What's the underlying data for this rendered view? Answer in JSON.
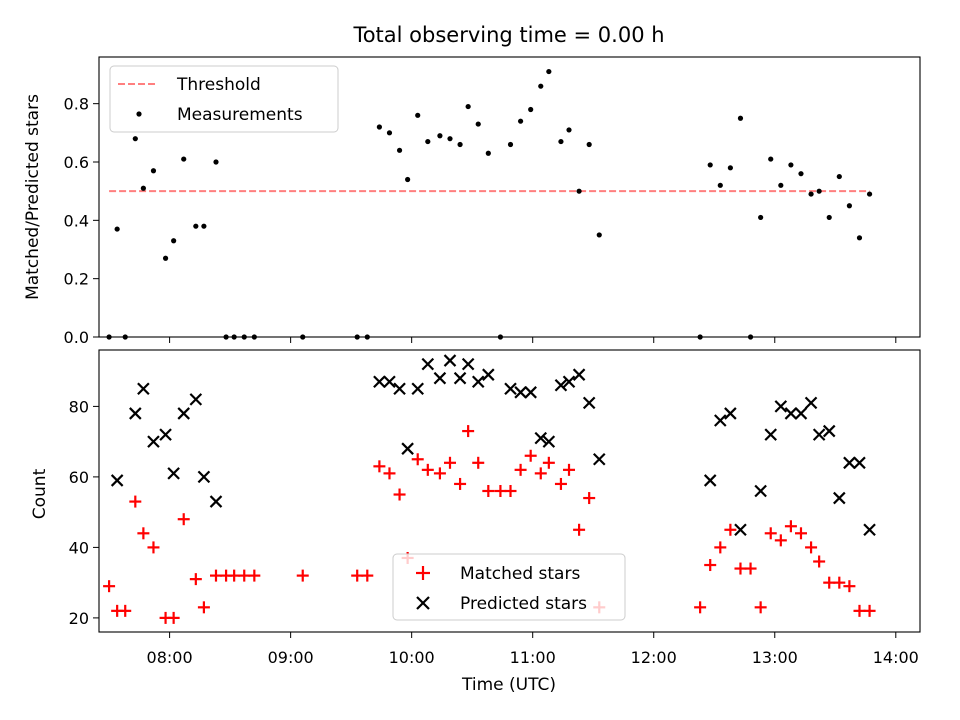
{
  "chart_data": [
    {
      "type": "scatter",
      "title": "Total observing time = 0.00 h",
      "xlabel": "",
      "ylabel": "Matched/Predicted stars",
      "xlim": [
        "07:25",
        "14:12"
      ],
      "ylim": [
        0,
        0.96
      ],
      "yticks": [
        0.0,
        0.2,
        0.4,
        0.6,
        0.8
      ],
      "ytick_labels": [
        "0.0",
        "0.2",
        "0.4",
        "0.6",
        "0.8"
      ],
      "legend_position": "upper-left",
      "legend": [
        "Threshold",
        "Measurements"
      ],
      "threshold": {
        "name": "Threshold",
        "y": 0.5,
        "x_start": "07:30",
        "x_end": "13:47",
        "color": "#ff7f7f",
        "style": "dashed"
      },
      "measurements": {
        "name": "Measurements",
        "color": "#000000",
        "points": [
          [
            "07:30",
            0.0
          ],
          [
            "07:34",
            0.37
          ],
          [
            "07:38",
            0.0
          ],
          [
            "07:43",
            0.68
          ],
          [
            "07:47",
            0.51
          ],
          [
            "07:52",
            0.57
          ],
          [
            "07:58",
            0.27
          ],
          [
            "08:02",
            0.33
          ],
          [
            "08:07",
            0.61
          ],
          [
            "08:13",
            0.38
          ],
          [
            "08:17",
            0.38
          ],
          [
            "08:23",
            0.6
          ],
          [
            "08:28",
            0.0
          ],
          [
            "08:32",
            0.0
          ],
          [
            "08:37",
            0.0
          ],
          [
            "08:42",
            0.0
          ],
          [
            "09:06",
            0.0
          ],
          [
            "09:33",
            0.0
          ],
          [
            "09:38",
            0.0
          ],
          [
            "09:44",
            0.72
          ],
          [
            "09:49",
            0.7
          ],
          [
            "09:54",
            0.64
          ],
          [
            "09:58",
            0.54
          ],
          [
            "10:03",
            0.76
          ],
          [
            "10:08",
            0.67
          ],
          [
            "10:14",
            0.69
          ],
          [
            "10:19",
            0.68
          ],
          [
            "10:24",
            0.66
          ],
          [
            "10:28",
            0.79
          ],
          [
            "10:33",
            0.73
          ],
          [
            "10:38",
            0.63
          ],
          [
            "10:44",
            0.0
          ],
          [
            "10:49",
            0.66
          ],
          [
            "10:54",
            0.74
          ],
          [
            "10:59",
            0.78
          ],
          [
            "11:04",
            0.86
          ],
          [
            "11:08",
            0.91
          ],
          [
            "11:14",
            0.67
          ],
          [
            "11:18",
            0.71
          ],
          [
            "11:23",
            0.5
          ],
          [
            "11:28",
            0.66
          ],
          [
            "11:33",
            0.35
          ],
          [
            "12:23",
            0.0
          ],
          [
            "12:28",
            0.59
          ],
          [
            "12:33",
            0.52
          ],
          [
            "12:38",
            0.58
          ],
          [
            "12:43",
            0.75
          ],
          [
            "12:48",
            0.0
          ],
          [
            "12:53",
            0.41
          ],
          [
            "12:58",
            0.61
          ],
          [
            "13:03",
            0.52
          ],
          [
            "13:08",
            0.59
          ],
          [
            "13:13",
            0.56
          ],
          [
            "13:18",
            0.49
          ],
          [
            "13:22",
            0.5
          ],
          [
            "13:27",
            0.41
          ],
          [
            "13:32",
            0.55
          ],
          [
            "13:37",
            0.45
          ],
          [
            "13:42",
            0.34
          ],
          [
            "13:47",
            0.49
          ]
        ]
      }
    },
    {
      "type": "scatter",
      "title": "",
      "xlabel": "Time (UTC)",
      "ylabel": "Count",
      "xlim": [
        "07:25",
        "14:12"
      ],
      "xticks": [
        "08:00",
        "09:00",
        "10:00",
        "11:00",
        "12:00",
        "13:00",
        "14:00"
      ],
      "xtick_labels": [
        "08:00",
        "09:00",
        "10:00",
        "11:00",
        "12:00",
        "13:00",
        "14:00"
      ],
      "ylim": [
        16,
        96
      ],
      "yticks": [
        20,
        40,
        60,
        80
      ],
      "ytick_labels": [
        "20",
        "40",
        "60",
        "80"
      ],
      "legend_position": "lower-center",
      "legend": [
        "Matched stars",
        "Predicted stars"
      ],
      "series": [
        {
          "name": "Matched stars",
          "marker": "plus",
          "color": "#ff0000",
          "points": [
            [
              "07:30",
              29
            ],
            [
              "07:34",
              22
            ],
            [
              "07:38",
              22
            ],
            [
              "07:43",
              53
            ],
            [
              "07:47",
              44
            ],
            [
              "07:52",
              40
            ],
            [
              "07:58",
              20
            ],
            [
              "08:02",
              20
            ],
            [
              "08:07",
              48
            ],
            [
              "08:13",
              31
            ],
            [
              "08:17",
              23
            ],
            [
              "08:23",
              32
            ],
            [
              "08:28",
              32
            ],
            [
              "08:32",
              32
            ],
            [
              "08:37",
              32
            ],
            [
              "08:42",
              32
            ],
            [
              "09:06",
              32
            ],
            [
              "09:33",
              32
            ],
            [
              "09:38",
              32
            ],
            [
              "09:44",
              63
            ],
            [
              "09:49",
              61
            ],
            [
              "09:54",
              55
            ],
            [
              "09:58",
              37
            ],
            [
              "10:03",
              65
            ],
            [
              "10:08",
              62
            ],
            [
              "10:14",
              61
            ],
            [
              "10:19",
              64
            ],
            [
              "10:24",
              58
            ],
            [
              "10:28",
              73
            ],
            [
              "10:33",
              64
            ],
            [
              "10:38",
              56
            ],
            [
              "10:44",
              56
            ],
            [
              "10:49",
              56
            ],
            [
              "10:54",
              62
            ],
            [
              "10:59",
              66
            ],
            [
              "11:04",
              61
            ],
            [
              "11:08",
              64
            ],
            [
              "11:14",
              58
            ],
            [
              "11:18",
              62
            ],
            [
              "11:23",
              45
            ],
            [
              "11:28",
              54
            ],
            [
              "11:33",
              23
            ],
            [
              "12:23",
              23
            ],
            [
              "12:28",
              35
            ],
            [
              "12:33",
              40
            ],
            [
              "12:38",
              45
            ],
            [
              "12:43",
              34
            ],
            [
              "12:48",
              34
            ],
            [
              "12:53",
              23
            ],
            [
              "12:58",
              44
            ],
            [
              "13:03",
              42
            ],
            [
              "13:08",
              46
            ],
            [
              "13:13",
              44
            ],
            [
              "13:18",
              40
            ],
            [
              "13:22",
              36
            ],
            [
              "13:27",
              30
            ],
            [
              "13:32",
              30
            ],
            [
              "13:37",
              29
            ],
            [
              "13:42",
              22
            ],
            [
              "13:47",
              22
            ]
          ]
        },
        {
          "name": "Predicted stars",
          "marker": "x",
          "color": "#000000",
          "points": [
            [
              "07:34",
              59
            ],
            [
              "07:43",
              78
            ],
            [
              "07:47",
              85
            ],
            [
              "07:52",
              70
            ],
            [
              "07:58",
              72
            ],
            [
              "08:02",
              61
            ],
            [
              "08:07",
              78
            ],
            [
              "08:13",
              82
            ],
            [
              "08:17",
              60
            ],
            [
              "08:23",
              53
            ],
            [
              "09:44",
              87
            ],
            [
              "09:49",
              87
            ],
            [
              "09:54",
              85
            ],
            [
              "09:58",
              68
            ],
            [
              "10:03",
              85
            ],
            [
              "10:08",
              92
            ],
            [
              "10:14",
              88
            ],
            [
              "10:19",
              93
            ],
            [
              "10:24",
              88
            ],
            [
              "10:28",
              92
            ],
            [
              "10:33",
              87
            ],
            [
              "10:38",
              89
            ],
            [
              "10:49",
              85
            ],
            [
              "10:54",
              84
            ],
            [
              "10:59",
              84
            ],
            [
              "11:04",
              71
            ],
            [
              "11:08",
              70
            ],
            [
              "11:14",
              86
            ],
            [
              "11:18",
              87
            ],
            [
              "11:23",
              89
            ],
            [
              "11:28",
              81
            ],
            [
              "11:33",
              65
            ],
            [
              "12:28",
              59
            ],
            [
              "12:33",
              76
            ],
            [
              "12:38",
              78
            ],
            [
              "12:43",
              45
            ],
            [
              "12:53",
              56
            ],
            [
              "12:58",
              72
            ],
            [
              "13:03",
              80
            ],
            [
              "13:08",
              78
            ],
            [
              "13:13",
              78
            ],
            [
              "13:18",
              81
            ],
            [
              "13:22",
              72
            ],
            [
              "13:27",
              73
            ],
            [
              "13:32",
              54
            ],
            [
              "13:37",
              64
            ],
            [
              "13:42",
              64
            ],
            [
              "13:47",
              45
            ]
          ]
        }
      ]
    }
  ]
}
